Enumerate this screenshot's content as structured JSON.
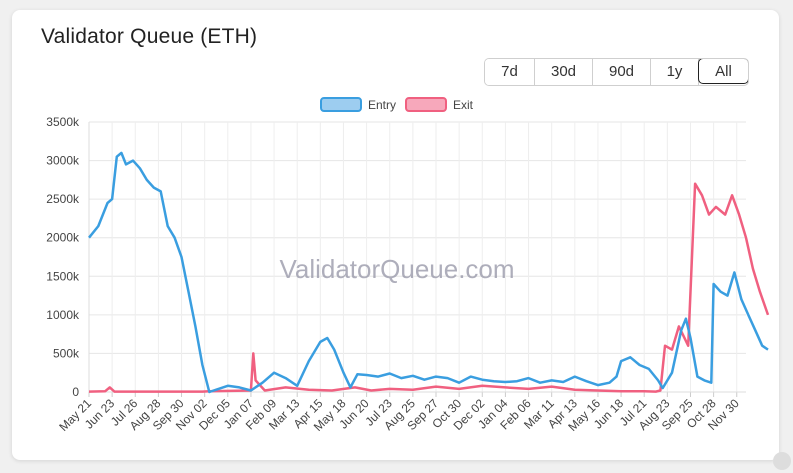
{
  "header": {
    "title": "Validator Queue (ETH)"
  },
  "range_buttons": [
    {
      "label": "7d",
      "active": false
    },
    {
      "label": "30d",
      "active": false
    },
    {
      "label": "90d",
      "active": false
    },
    {
      "label": "1y",
      "active": false
    },
    {
      "label": "All",
      "active": true
    }
  ],
  "watermark": "ValidatorQueue.com",
  "chart_data": {
    "type": "line",
    "legend": {
      "position": "top-center"
    },
    "grid": true,
    "ylim": [
      0,
      3500000
    ],
    "y_ticks": [
      "0",
      "500k",
      "1000k",
      "1500k",
      "2000k",
      "2500k",
      "3000k",
      "3500k"
    ],
    "x_ticks": [
      "May 21",
      "Jun 23",
      "Jul 26",
      "Aug 28",
      "Sep 30",
      "Nov 02",
      "Dec 05",
      "Jan 07",
      "Feb 09",
      "Mar 13",
      "Apr 15",
      "May 18",
      "Jun 20",
      "Jul 23",
      "Aug 25",
      "Sep 27",
      "Oct 30",
      "Dec 02",
      "Jan 04",
      "Feb 06",
      "Mar 11",
      "Apr 13",
      "May 16",
      "Jun 18",
      "Jul 21",
      "Aug 23",
      "Sep 25",
      "Oct 28",
      "Nov 30"
    ],
    "series": [
      {
        "name": "Entry",
        "color": "#3a9ee0",
        "fill": "#9dcdf0",
        "points": [
          [
            0,
            2000000
          ],
          [
            0.4,
            2150000
          ],
          [
            0.8,
            2450000
          ],
          [
            1.0,
            2500000
          ],
          [
            1.2,
            3050000
          ],
          [
            1.4,
            3100000
          ],
          [
            1.6,
            2950000
          ],
          [
            1.9,
            3000000
          ],
          [
            2.2,
            2900000
          ],
          [
            2.5,
            2750000
          ],
          [
            2.8,
            2650000
          ],
          [
            3.1,
            2600000
          ],
          [
            3.4,
            2150000
          ],
          [
            3.7,
            2000000
          ],
          [
            4.0,
            1750000
          ],
          [
            4.3,
            1300000
          ],
          [
            4.6,
            850000
          ],
          [
            4.9,
            350000
          ],
          [
            5.2,
            0
          ],
          [
            5.5,
            30000
          ],
          [
            6.0,
            80000
          ],
          [
            6.5,
            60000
          ],
          [
            7.0,
            20000
          ],
          [
            7.5,
            120000
          ],
          [
            8.0,
            250000
          ],
          [
            8.5,
            180000
          ],
          [
            9.0,
            80000
          ],
          [
            9.5,
            400000
          ],
          [
            10.0,
            650000
          ],
          [
            10.3,
            700000
          ],
          [
            10.6,
            550000
          ],
          [
            11.0,
            250000
          ],
          [
            11.3,
            60000
          ],
          [
            11.6,
            230000
          ],
          [
            12.0,
            220000
          ],
          [
            12.5,
            200000
          ],
          [
            13.0,
            240000
          ],
          [
            13.5,
            180000
          ],
          [
            14.0,
            210000
          ],
          [
            14.5,
            160000
          ],
          [
            15.0,
            200000
          ],
          [
            15.5,
            180000
          ],
          [
            16.0,
            120000
          ],
          [
            16.5,
            200000
          ],
          [
            17.0,
            160000
          ],
          [
            17.5,
            140000
          ],
          [
            18.0,
            130000
          ],
          [
            18.5,
            140000
          ],
          [
            19.0,
            180000
          ],
          [
            19.5,
            120000
          ],
          [
            20.0,
            150000
          ],
          [
            20.5,
            130000
          ],
          [
            21.0,
            200000
          ],
          [
            21.5,
            140000
          ],
          [
            22.0,
            90000
          ],
          [
            22.5,
            120000
          ],
          [
            22.8,
            200000
          ],
          [
            23.0,
            400000
          ],
          [
            23.4,
            450000
          ],
          [
            23.8,
            350000
          ],
          [
            24.2,
            300000
          ],
          [
            24.6,
            150000
          ],
          [
            24.8,
            50000
          ],
          [
            25.2,
            250000
          ],
          [
            25.6,
            800000
          ],
          [
            25.8,
            950000
          ],
          [
            26.0,
            700000
          ],
          [
            26.3,
            200000
          ],
          [
            26.6,
            150000
          ],
          [
            26.9,
            120000
          ],
          [
            27.0,
            1400000
          ],
          [
            27.3,
            1300000
          ],
          [
            27.6,
            1250000
          ],
          [
            27.9,
            1550000
          ],
          [
            28.2,
            1200000
          ],
          [
            28.5,
            1000000
          ],
          [
            28.8,
            800000
          ],
          [
            29.1,
            600000
          ],
          [
            29.35,
            550000
          ]
        ]
      },
      {
        "name": "Exit",
        "color": "#f06080",
        "fill": "#f7a8bb",
        "points": [
          [
            0,
            5000
          ],
          [
            0.7,
            10000
          ],
          [
            0.9,
            60000
          ],
          [
            1.1,
            5000
          ],
          [
            4.9,
            5000
          ],
          [
            5.2,
            10000
          ],
          [
            7.0,
            20000
          ],
          [
            7.1,
            500000
          ],
          [
            7.2,
            150000
          ],
          [
            7.6,
            20000
          ],
          [
            8.5,
            60000
          ],
          [
            9.5,
            30000
          ],
          [
            10.5,
            20000
          ],
          [
            11.5,
            60000
          ],
          [
            12.2,
            20000
          ],
          [
            13.0,
            40000
          ],
          [
            14.0,
            30000
          ],
          [
            15.0,
            70000
          ],
          [
            16.0,
            40000
          ],
          [
            17.0,
            80000
          ],
          [
            18.0,
            60000
          ],
          [
            19.0,
            40000
          ],
          [
            20.0,
            70000
          ],
          [
            21.0,
            30000
          ],
          [
            22.0,
            20000
          ],
          [
            23.0,
            10000
          ],
          [
            24.0,
            10000
          ],
          [
            24.5,
            5000
          ],
          [
            24.7,
            20000
          ],
          [
            24.9,
            600000
          ],
          [
            25.2,
            550000
          ],
          [
            25.5,
            850000
          ],
          [
            25.9,
            600000
          ],
          [
            26.2,
            2700000
          ],
          [
            26.5,
            2550000
          ],
          [
            26.8,
            2300000
          ],
          [
            27.1,
            2400000
          ],
          [
            27.5,
            2300000
          ],
          [
            27.8,
            2550000
          ],
          [
            28.1,
            2300000
          ],
          [
            28.4,
            2000000
          ],
          [
            28.7,
            1600000
          ],
          [
            29.0,
            1300000
          ],
          [
            29.35,
            1000000
          ]
        ]
      }
    ]
  }
}
